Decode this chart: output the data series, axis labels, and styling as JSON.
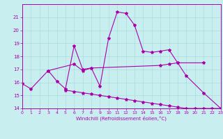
{
  "background_color": "#c8eef0",
  "grid_color": "#aadddd",
  "line_color": "#aa00aa",
  "xlabel": "Windchill (Refroidissement éolien,°C)",
  "xlim": [
    0,
    23
  ],
  "ylim": [
    14,
    22
  ],
  "xticks": [
    0,
    1,
    2,
    3,
    4,
    5,
    6,
    7,
    8,
    9,
    10,
    11,
    12,
    13,
    14,
    15,
    16,
    17,
    18,
    19,
    20,
    21,
    22,
    23
  ],
  "yticks": [
    14,
    15,
    16,
    17,
    18,
    19,
    20,
    21
  ],
  "line1_x": [
    0,
    1,
    3,
    4,
    5,
    6,
    7,
    8,
    9,
    10,
    11,
    12,
    13,
    14,
    15,
    16,
    17,
    18,
    19,
    21,
    23
  ],
  "line1_y": [
    15.9,
    15.5,
    16.9,
    16.1,
    15.5,
    18.8,
    17.0,
    17.1,
    15.7,
    19.4,
    21.4,
    21.3,
    20.4,
    18.4,
    18.3,
    18.4,
    18.5,
    17.5,
    16.5,
    15.2,
    14.0
  ],
  "line2_x": [
    3,
    6,
    7,
    8,
    16,
    17,
    18,
    21
  ],
  "line2_y": [
    16.9,
    17.4,
    16.9,
    17.1,
    17.3,
    17.4,
    17.5,
    17.5
  ],
  "line3_x": [
    5,
    6,
    7,
    8,
    9,
    10,
    11,
    12,
    13,
    14,
    15,
    16,
    17,
    18,
    19,
    20,
    21,
    22,
    23
  ],
  "line3_y": [
    15.4,
    15.3,
    15.2,
    15.1,
    15.0,
    14.9,
    14.8,
    14.7,
    14.6,
    14.5,
    14.4,
    14.3,
    14.2,
    14.1,
    14.0,
    14.0,
    14.0,
    14.0,
    14.0
  ]
}
